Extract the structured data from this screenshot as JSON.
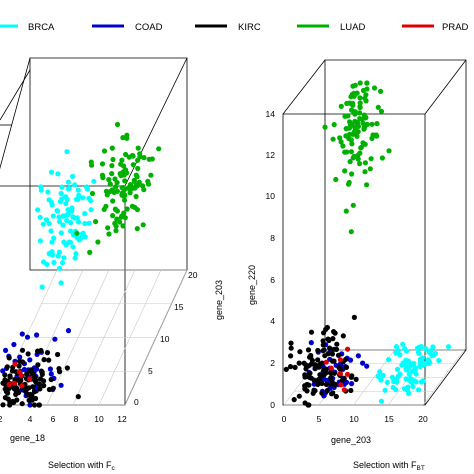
{
  "chart_data": [
    {
      "type": "scatter",
      "legend": [
        "BRCA",
        "COAD",
        "KIRC",
        "LUAD",
        "PRAD"
      ],
      "colors": {
        "BRCA": "#00ffff",
        "COAD": "#0000cc",
        "KIRC": "#000000",
        "LUAD": "#00b000",
        "PRAD": "#dd0000"
      },
      "legend_placement": "top",
      "title": "",
      "xlabel": "gene_18",
      "zlabel": "gene_203",
      "caption": {
        "text": "Selection with  F",
        "subscript": "c"
      },
      "x_ticks": [
        "4",
        "6",
        "8",
        "10",
        "12"
      ],
      "depth_ticks": [
        "0",
        "5",
        "10",
        "15",
        "20"
      ],
      "xlim": [
        2,
        12
      ],
      "depth_lim": [
        0,
        20
      ],
      "series": [
        {
          "name": "BRCA",
          "center": {
            "x": 3.5,
            "depth": 16,
            "vert": 0.35
          },
          "spread": {
            "x": 1.0,
            "depth": 2.2,
            "vert": 0.1
          },
          "count": 95
        },
        {
          "name": "COAD",
          "center": {
            "x": 3.5,
            "depth": 3,
            "vert": 0.03
          },
          "spread": {
            "x": 1.7,
            "depth": 2.5,
            "vert": 0.05
          },
          "count": 55
        },
        {
          "name": "KIRC",
          "center": {
            "x": 3.2,
            "depth": 2,
            "vert": 0.02
          },
          "spread": {
            "x": 1.5,
            "depth": 2.0,
            "vert": 0.05
          },
          "count": 130
        },
        {
          "name": "LUAD",
          "center": {
            "x": 8.2,
            "depth": 15,
            "vert": 0.55
          },
          "spread": {
            "x": 1.0,
            "depth": 2.0,
            "vert": 0.08
          },
          "count": 110
        },
        {
          "name": "PRAD",
          "center": {
            "x": 3.0,
            "depth": 2,
            "vert": 0.03
          },
          "spread": {
            "x": 0.8,
            "depth": 1.5,
            "vert": 0.03
          },
          "count": 8
        }
      ]
    },
    {
      "type": "scatter",
      "title": "",
      "xlabel": "gene_203",
      "ylabel": "gene_220",
      "caption": {
        "text": "Selection with  F",
        "subscript": "BT"
      },
      "x_ticks": [
        "0",
        "5",
        "10",
        "15",
        "20"
      ],
      "y_ticks": [
        "0",
        "2",
        "4",
        "6",
        "8",
        "10",
        "12",
        "14"
      ],
      "xlim": [
        0,
        20
      ],
      "ylim": [
        0,
        14
      ],
      "series": [
        {
          "name": "BRCA",
          "center": {
            "x": 16,
            "y": 0.8,
            "depth": 0.4
          },
          "spread": {
            "x": 1.8,
            "y": 0.5,
            "depth": 0.2
          },
          "count": 90
        },
        {
          "name": "COAD",
          "center": {
            "x": 5,
            "y": 0.8,
            "depth": 0.2
          },
          "spread": {
            "x": 2.0,
            "y": 0.6,
            "depth": 0.15
          },
          "count": 50
        },
        {
          "name": "KIRC",
          "center": {
            "x": 4,
            "y": 1.2,
            "depth": 0.2
          },
          "spread": {
            "x": 2.0,
            "y": 1.0,
            "depth": 0.15
          },
          "count": 110
        },
        {
          "name": "LUAD",
          "center": {
            "x": 9,
            "y": 12.5,
            "depth": 0.3
          },
          "spread": {
            "x": 1.2,
            "y": 1.5,
            "depth": 0.12
          },
          "count": 110
        },
        {
          "name": "PRAD",
          "center": {
            "x": 6,
            "y": 1.0,
            "depth": 0.3
          },
          "spread": {
            "x": 1.0,
            "y": 0.5,
            "depth": 0.1
          },
          "count": 8
        }
      ]
    }
  ]
}
